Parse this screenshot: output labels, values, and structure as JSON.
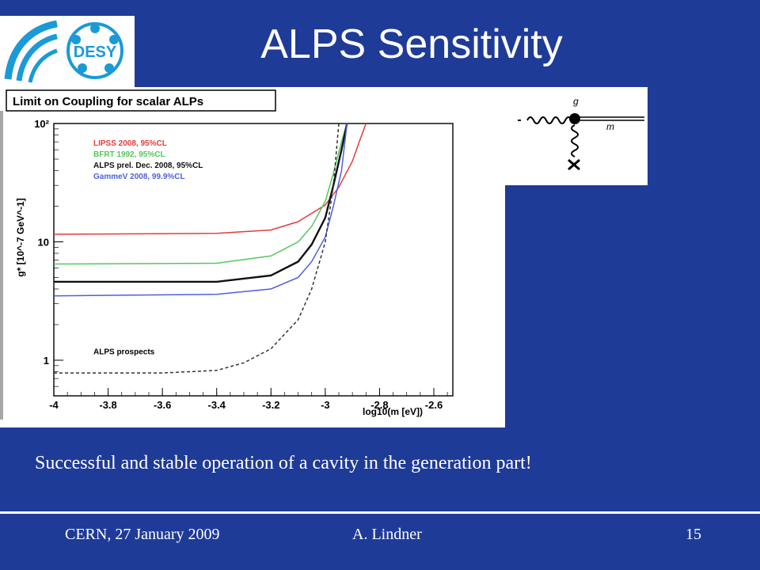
{
  "slide": {
    "title": "ALPS Sensitivity",
    "caption": "Successful  and stable operation of a cavity in the generation part!",
    "footer_left": "CERN, 27 January 2009",
    "footer_author": "A. Lindner",
    "page_number": "15",
    "logo_text": "DESY",
    "colors": {
      "background": "#1f3b98",
      "logo_blue": "#1a9ad6"
    }
  },
  "diagram": {
    "coupling_label": "g",
    "mass_label": "m"
  },
  "chart_data": {
    "type": "line",
    "title": "Limit on Coupling for scalar ALPs",
    "xlabel": "log10(m [eV])",
    "ylabel": "g* [10^-7 GeV^-1]",
    "xlim": [
      -4.0,
      -2.53
    ],
    "ylim": [
      0.5,
      100
    ],
    "y_scale": "log",
    "x_ticks": [
      "-4",
      "-3.8",
      "-3.6",
      "-3.4",
      "-3.2",
      "-3",
      "-2.8",
      "-2.6"
    ],
    "y_ticks": [
      "1",
      "10",
      "10²"
    ],
    "legend_placement": "top-left",
    "series": [
      {
        "name": "LIPSS 2008, 95%CL",
        "color": "#e23c3c",
        "style": "solid",
        "x": [
          -4.0,
          -3.4,
          -3.2,
          -3.1,
          -3.0,
          -2.95,
          -2.9,
          -2.87,
          -2.85
        ],
        "y": [
          11.6,
          11.8,
          12.6,
          14.8,
          20.5,
          29,
          48,
          75,
          100
        ]
      },
      {
        "name": "BFRT 1992, 95%CL",
        "color": "#55c65a",
        "style": "solid",
        "x": [
          -4.0,
          -3.4,
          -3.2,
          -3.1,
          -3.05,
          -3.0,
          -2.97,
          -2.94,
          -2.92
        ],
        "y": [
          6.5,
          6.6,
          7.6,
          10,
          13.5,
          22,
          38,
          70,
          100
        ]
      },
      {
        "name": "ALPS prel. Dec. 2008, 95%CL",
        "color": "#111111",
        "style": "solid",
        "x": [
          -4.0,
          -3.4,
          -3.2,
          -3.1,
          -3.05,
          -3.0,
          -2.97,
          -2.94,
          -2.92
        ],
        "y": [
          4.6,
          4.6,
          5.2,
          6.8,
          9.5,
          16,
          30,
          60,
          100
        ]
      },
      {
        "name": "GammeV 2008, 99.9%CL",
        "color": "#4d5fe0",
        "style": "solid",
        "x": [
          -4.0,
          -3.4,
          -3.2,
          -3.1,
          -3.05,
          -3.0,
          -2.97,
          -2.94,
          -2.92
        ],
        "y": [
          3.5,
          3.6,
          4.0,
          5.0,
          6.8,
          11,
          20,
          40,
          100
        ]
      },
      {
        "name": "ALPS prospects",
        "color": "#333333",
        "style": "dashed",
        "x": [
          -4.0,
          -3.6,
          -3.4,
          -3.3,
          -3.2,
          -3.1,
          -3.05,
          -3.0,
          -2.97,
          -2.95
        ],
        "y": [
          0.78,
          0.78,
          0.82,
          0.95,
          1.25,
          2.2,
          4.0,
          10,
          30,
          100
        ]
      }
    ]
  }
}
